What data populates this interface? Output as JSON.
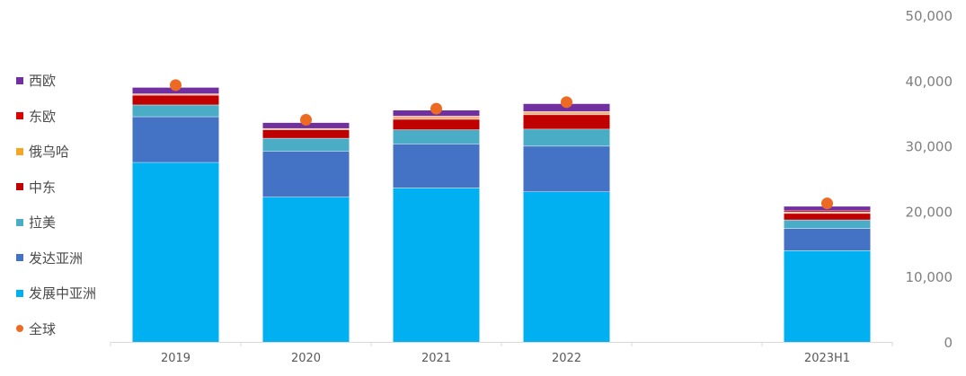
{
  "chart_data": {
    "type": "bar",
    "stacked": true,
    "categories": [
      "2019",
      "2020",
      "2021",
      "2022",
      "",
      "2023H1"
    ],
    "ylim": [
      0,
      50000
    ],
    "yticks": [
      "0",
      "10,000",
      "20,000",
      "30,000",
      "40,000",
      "50,000"
    ],
    "ytick_values": [
      0,
      10000,
      20000,
      30000,
      40000,
      50000
    ],
    "y_axis_side": "right",
    "grid": false,
    "legend_position": "left",
    "series": [
      {
        "name": "发展中亚洲",
        "color": "#00b0f0",
        "values": [
          27500,
          22200,
          23600,
          23000,
          null,
          14000
        ]
      },
      {
        "name": "发达亚洲",
        "color": "#4472c4",
        "values": [
          7000,
          7000,
          6700,
          7000,
          null,
          3400
        ]
      },
      {
        "name": "拉美",
        "color": "#4bacc6",
        "values": [
          1800,
          2000,
          2200,
          2600,
          null,
          1300
        ]
      },
      {
        "name": "中东",
        "color": "#c00000",
        "values": [
          1500,
          1300,
          1600,
          2200,
          null,
          1000
        ]
      },
      {
        "name": "俄乌哈",
        "color": "#f4b183",
        "values": [
          200,
          200,
          500,
          500,
          null,
          200
        ]
      },
      {
        "name": "东欧",
        "color": "#c00000",
        "values": [
          0,
          0,
          0,
          0,
          null,
          200
        ]
      },
      {
        "name": "西欧",
        "color": "#7030a0",
        "values": [
          1000,
          900,
          900,
          1200,
          null,
          700
        ]
      }
    ],
    "global": {
      "name": "全球",
      "color": "#ed6a22",
      "values": [
        39300,
        34000,
        35700,
        36700,
        null,
        21200
      ]
    }
  },
  "legend": [
    {
      "label": "西欧",
      "color": "#7030a0",
      "shape": "square"
    },
    {
      "label": "东欧",
      "color": "#e00000",
      "shape": "square"
    },
    {
      "label": "俄乌哈",
      "color": "#f5a623",
      "shape": "square"
    },
    {
      "label": "中东",
      "color": "#c00000",
      "shape": "square"
    },
    {
      "label": "拉美",
      "color": "#4bacc6",
      "shape": "square"
    },
    {
      "label": "发达亚洲",
      "color": "#4472c4",
      "shape": "square"
    },
    {
      "label": "发展中亚洲",
      "color": "#00b0f0",
      "shape": "square"
    },
    {
      "label": "全球",
      "color": "#ed6a22",
      "shape": "dot"
    }
  ]
}
